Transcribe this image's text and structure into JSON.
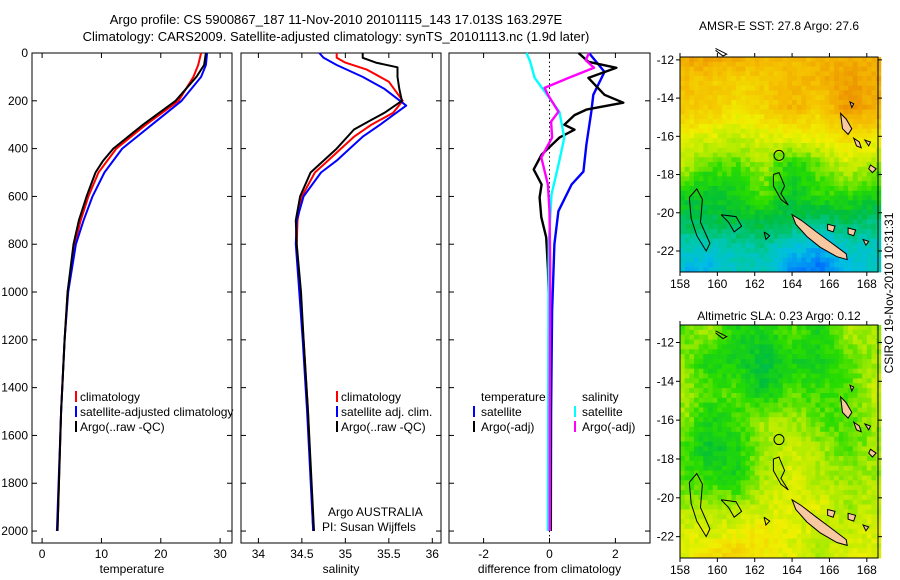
{
  "header": {
    "line1": "Argo profile: CS 5900867_187 11-Nov-2010 20101115_143 17.013S 163.297E",
    "line2": "Climatology: CARS2009. Satellite-adjusted climatology: synTS_20101113.nc (1.9d later)"
  },
  "credit": "CSIRO 19-Nov-2010 10:31:31",
  "attribution": {
    "line1": "Argo AUSTRALIA",
    "line2": "PI: Susan Wijffels"
  },
  "colors": {
    "climatology": "#ff0000",
    "satellite": "#0000ff",
    "argo": "#000000",
    "sal_satellite": "#00ffff",
    "sal_argo": "#ff00ff",
    "land": "#f8c8a0"
  },
  "chart_data": [
    {
      "type": "line",
      "name": "temperature",
      "xlabel": "temperature",
      "ylabel": "",
      "xlim": [
        -1.7,
        32
      ],
      "ylim": [
        0,
        2050
      ],
      "y_reversed": true,
      "xticks": [
        0,
        10,
        20,
        30
      ],
      "yticks": [
        0,
        200,
        400,
        600,
        800,
        1000,
        1200,
        1400,
        1600,
        1800,
        2000
      ],
      "legend": [
        "climatology",
        "satellite-adjusted climatology",
        "Argo(..raw -QC)"
      ],
      "series": [
        {
          "name": "climatology",
          "color": "#ff0000",
          "points": [
            [
              0,
              26.8
            ],
            [
              50,
              26.3
            ],
            [
              100,
              25.5
            ],
            [
              200,
              23
            ],
            [
              300,
              17.5
            ],
            [
              400,
              12.5
            ],
            [
              500,
              9.5
            ],
            [
              600,
              7.8
            ],
            [
              700,
              6.5
            ],
            [
              800,
              5.5
            ],
            [
              1000,
              4.3
            ],
            [
              1200,
              3.8
            ],
            [
              1500,
              3.2
            ],
            [
              2000,
              2.6
            ]
          ]
        },
        {
          "name": "satellite-adjusted climatology",
          "color": "#0000ff",
          "points": [
            [
              0,
              27.8
            ],
            [
              50,
              27.6
            ],
            [
              100,
              26.8
            ],
            [
              200,
              23.5
            ],
            [
              300,
              18.5
            ],
            [
              400,
              13.5
            ],
            [
              500,
              10.5
            ],
            [
              600,
              8.5
            ],
            [
              700,
              7
            ],
            [
              800,
              5.7
            ],
            [
              1000,
              4.4
            ],
            [
              1200,
              3.8
            ],
            [
              1500,
              3.2
            ],
            [
              2000,
              2.5
            ]
          ]
        },
        {
          "name": "Argo(..raw -QC)",
          "color": "#000000",
          "points": [
            [
              0,
              27.6
            ],
            [
              50,
              27.3
            ],
            [
              100,
              26
            ],
            [
              200,
              22.5
            ],
            [
              300,
              17
            ],
            [
              400,
              12
            ],
            [
              450,
              10.3
            ],
            [
              500,
              9
            ],
            [
              600,
              7.5
            ],
            [
              700,
              6.2
            ],
            [
              800,
              5.3
            ],
            [
              1000,
              4.3
            ],
            [
              1200,
              3.8
            ],
            [
              1500,
              3.2
            ],
            [
              2000,
              2.6
            ]
          ]
        }
      ]
    },
    {
      "type": "line",
      "name": "salinity",
      "xlabel": "salinity",
      "xlim": [
        33.8,
        36.1
      ],
      "ylim": [
        0,
        2050
      ],
      "y_reversed": true,
      "xticks": [
        34,
        34.5,
        35,
        35.5,
        36
      ],
      "legend": [
        "climatology",
        "satellite adj. clim.",
        "Argo(..raw -QC)"
      ],
      "series": [
        {
          "name": "climatology",
          "color": "#ff0000",
          "points": [
            [
              0,
              34.9
            ],
            [
              20,
              34.9
            ],
            [
              40,
              35.0
            ],
            [
              70,
              35.25
            ],
            [
              120,
              35.5
            ],
            [
              200,
              35.66
            ],
            [
              250,
              35.55
            ],
            [
              300,
              35.3
            ],
            [
              350,
              35.1
            ],
            [
              400,
              34.95
            ],
            [
              450,
              34.8
            ],
            [
              500,
              34.65
            ],
            [
              600,
              34.5
            ],
            [
              700,
              34.45
            ],
            [
              800,
              34.44
            ],
            [
              1000,
              34.48
            ],
            [
              1200,
              34.52
            ],
            [
              1500,
              34.57
            ],
            [
              2000,
              34.63
            ]
          ]
        },
        {
          "name": "satellite adj. clim.",
          "color": "#0000ff",
          "points": [
            [
              0,
              34.7
            ],
            [
              20,
              34.75
            ],
            [
              50,
              34.9
            ],
            [
              100,
              35.2
            ],
            [
              150,
              35.45
            ],
            [
              220,
              35.7
            ],
            [
              260,
              35.55
            ],
            [
              300,
              35.4
            ],
            [
              350,
              35.2
            ],
            [
              400,
              35.05
            ],
            [
              450,
              34.9
            ],
            [
              500,
              34.72
            ],
            [
              600,
              34.52
            ],
            [
              700,
              34.44
            ],
            [
              800,
              34.43
            ],
            [
              1000,
              34.47
            ],
            [
              1200,
              34.51
            ],
            [
              1500,
              34.56
            ],
            [
              2000,
              34.63
            ]
          ]
        },
        {
          "name": "Argo(..raw -QC)",
          "color": "#000000",
          "points": [
            [
              0,
              35.2
            ],
            [
              20,
              35.2
            ],
            [
              40,
              35.35
            ],
            [
              60,
              35.6
            ],
            [
              100,
              35.6
            ],
            [
              150,
              35.62
            ],
            [
              200,
              35.65
            ],
            [
              250,
              35.45
            ],
            [
              280,
              35.3
            ],
            [
              320,
              35.1
            ],
            [
              400,
              34.9
            ],
            [
              450,
              34.75
            ],
            [
              500,
              34.6
            ],
            [
              600,
              34.48
            ],
            [
              700,
              34.43
            ],
            [
              800,
              34.44
            ],
            [
              1000,
              34.49
            ],
            [
              1200,
              34.52
            ],
            [
              1500,
              34.57
            ],
            [
              2000,
              34.64
            ]
          ]
        }
      ]
    },
    {
      "type": "line",
      "name": "difference",
      "xlabel": "difference from climatology",
      "xlim": [
        -3.05,
        3.05
      ],
      "ylim": [
        0,
        2050
      ],
      "y_reversed": true,
      "xticks": [
        -2,
        0,
        2
      ],
      "legend_headers": [
        "temperature",
        "salinity"
      ],
      "legend": [
        "satellite",
        "Argo(-adj)",
        "satellite",
        "Argo(-adj)"
      ],
      "series": [
        {
          "name": "temperature satellite",
          "color": "#0000ff",
          "points": [
            [
              0,
              1.2
            ],
            [
              79,
              1.67
            ],
            [
              175,
              1.33
            ],
            [
              246,
              1.27
            ],
            [
              383,
              1.12
            ],
            [
              496,
              1.03
            ],
            [
              550,
              0.67
            ],
            [
              662,
              0.27
            ],
            [
              800,
              0.15
            ],
            [
              1080,
              0.08
            ],
            [
              1500,
              0.05
            ],
            [
              2000,
              0.04
            ]
          ]
        },
        {
          "name": "temperature Argo(-adj)",
          "color": "#000000",
          "points": [
            [
              0,
              0.88
            ],
            [
              37,
              1.18
            ],
            [
              62,
              2.03
            ],
            [
              104,
              1.18
            ],
            [
              175,
              1.67
            ],
            [
              208,
              2.24
            ],
            [
              237,
              1.12
            ],
            [
              260,
              0.76
            ],
            [
              300,
              0.45
            ],
            [
              321,
              0.76
            ],
            [
              354,
              0.3
            ],
            [
              425,
              -0.24
            ],
            [
              487,
              -0.48
            ],
            [
              550,
              -0.24
            ],
            [
              604,
              -0.3
            ],
            [
              687,
              -0.25
            ],
            [
              771,
              -0.1
            ],
            [
              900,
              -0.05
            ],
            [
              1200,
              0.02
            ],
            [
              1600,
              0.03
            ],
            [
              2000,
              0.04
            ]
          ]
        },
        {
          "name": "salinity satellite",
          "color": "#00ffff",
          "points": [
            [
              0,
              -0.7
            ],
            [
              30,
              -0.6
            ],
            [
              104,
              -0.45
            ],
            [
              180,
              -0.05
            ],
            [
              246,
              0.3
            ],
            [
              354,
              0.45
            ],
            [
              450,
              0.3
            ],
            [
              592,
              0.06
            ],
            [
              800,
              -0.02
            ],
            [
              1080,
              -0.03
            ],
            [
              1500,
              -0.04
            ],
            [
              2000,
              -0.05
            ]
          ]
        },
        {
          "name": "salinity Argo(-adj)",
          "color": "#ff00ff",
          "points": [
            [
              0,
              1.2
            ],
            [
              30,
              1.1
            ],
            [
              62,
              1.35
            ],
            [
              104,
              0.58
            ],
            [
              146,
              -0.15
            ],
            [
              175,
              -0.05
            ],
            [
              246,
              0.27
            ],
            [
              287,
              0.05
            ],
            [
              354,
              0.08
            ],
            [
              437,
              -0.25
            ],
            [
              550,
              -0.05
            ],
            [
              662,
              0
            ],
            [
              900,
              0.02
            ],
            [
              1500,
              0.01
            ],
            [
              2000,
              0.01
            ]
          ]
        }
      ]
    },
    {
      "type": "heatmap",
      "name": "sst-map",
      "title": "AMSR-E SST: 27.8 Argo: 27.6",
      "xlim": [
        158,
        168.6
      ],
      "ylim": [
        -23.1,
        -11.85
      ],
      "xticks": [
        158,
        160,
        162,
        164,
        166,
        168
      ],
      "yticks": [
        -12,
        -14,
        -16,
        -18,
        -20,
        -22
      ],
      "float_position": [
        163.3,
        -17.0
      ],
      "grid_lat": [
        -11.5,
        -13,
        -14.5,
        -16,
        -17.5,
        -19,
        -20.5,
        -22,
        -23
      ],
      "grid_lon": [
        158,
        159.5,
        161,
        162.5,
        164,
        165.5,
        167,
        168.6
      ],
      "grid_norm": [
        [
          0.78,
          0.8,
          0.78,
          0.75,
          0.72,
          0.74,
          0.76,
          0.74
        ],
        [
          0.72,
          0.7,
          0.68,
          0.7,
          0.72,
          0.74,
          0.78,
          0.76
        ],
        [
          0.7,
          0.7,
          0.65,
          0.68,
          0.74,
          0.68,
          0.8,
          0.74
        ],
        [
          0.62,
          0.6,
          0.58,
          0.6,
          0.62,
          0.62,
          0.66,
          0.64
        ],
        [
          0.58,
          0.5,
          0.5,
          0.55,
          0.45,
          0.52,
          0.58,
          0.55
        ],
        [
          0.45,
          0.42,
          0.45,
          0.5,
          0.42,
          0.48,
          0.48,
          0.45
        ],
        [
          0.38,
          0.38,
          0.4,
          0.4,
          0.38,
          0.35,
          0.38,
          0.35
        ],
        [
          0.3,
          0.28,
          0.3,
          0.32,
          0.25,
          0.22,
          0.28,
          0.3
        ],
        [
          0.25,
          0.24,
          0.3,
          0.3,
          0.2,
          0.15,
          0.25,
          0.3
        ]
      ]
    },
    {
      "type": "heatmap",
      "name": "sla-map",
      "title": "Altimetric SLA: 0.23 Argo: 0.12",
      "xlim": [
        158,
        168.6
      ],
      "ylim": [
        -23.1,
        -11.1
      ],
      "xticks": [
        158,
        160,
        162,
        164,
        166,
        168
      ],
      "yticks": [
        -12,
        -14,
        -16,
        -18,
        -20,
        -22
      ],
      "float_position": [
        163.3,
        -17.0
      ],
      "grid_lat": [
        -11.5,
        -13,
        -14.5,
        -16,
        -17.5,
        -19,
        -20.5,
        -22,
        -23
      ],
      "grid_lon": [
        158,
        159.5,
        161,
        162.5,
        164,
        165.5,
        167,
        168.6
      ],
      "grid_norm": [
        [
          0.5,
          0.55,
          0.45,
          0.45,
          0.5,
          0.45,
          0.55,
          0.55
        ],
        [
          0.55,
          0.45,
          0.45,
          0.4,
          0.45,
          0.45,
          0.5,
          0.55
        ],
        [
          0.55,
          0.5,
          0.5,
          0.42,
          0.5,
          0.48,
          0.5,
          0.58
        ],
        [
          0.55,
          0.45,
          0.48,
          0.55,
          0.55,
          0.5,
          0.5,
          0.55
        ],
        [
          0.5,
          0.42,
          0.45,
          0.55,
          0.58,
          0.55,
          0.5,
          0.55
        ],
        [
          0.5,
          0.48,
          0.45,
          0.55,
          0.6,
          0.55,
          0.55,
          0.55
        ],
        [
          0.55,
          0.55,
          0.55,
          0.58,
          0.6,
          0.6,
          0.55,
          0.58
        ],
        [
          0.6,
          0.6,
          0.62,
          0.65,
          0.6,
          0.58,
          0.58,
          0.6
        ],
        [
          0.6,
          0.65,
          0.7,
          0.62,
          0.6,
          0.55,
          0.6,
          0.6
        ]
      ]
    }
  ]
}
